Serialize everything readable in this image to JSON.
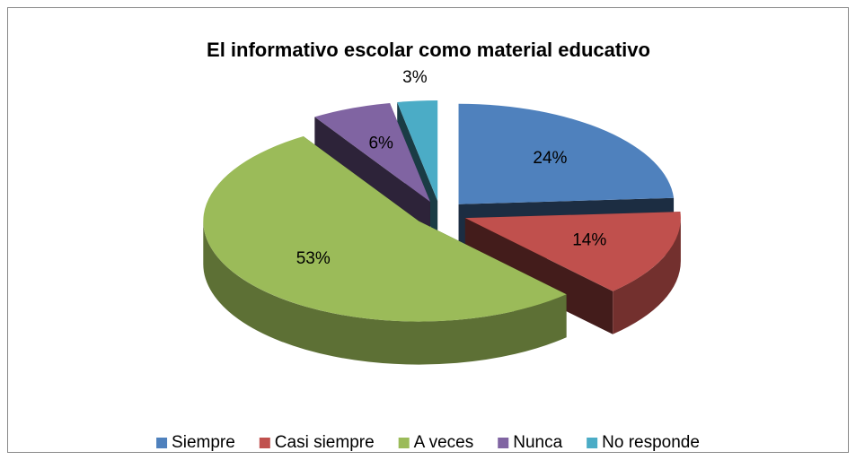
{
  "chart_data": {
    "type": "pie",
    "title": "El informativo escolar como material educativo",
    "categories": [
      "Siempre",
      "Casi siempre",
      "A veces",
      "Nunca",
      "No responde"
    ],
    "values": [
      24,
      14,
      53,
      6,
      3
    ],
    "value_labels": [
      "24%",
      "14%",
      "53%",
      "6%",
      "3%"
    ],
    "colors": [
      "#4f81bd",
      "#c0504d",
      "#9bbb59",
      "#8064a2",
      "#4bacc6"
    ],
    "legend": "bottom"
  }
}
